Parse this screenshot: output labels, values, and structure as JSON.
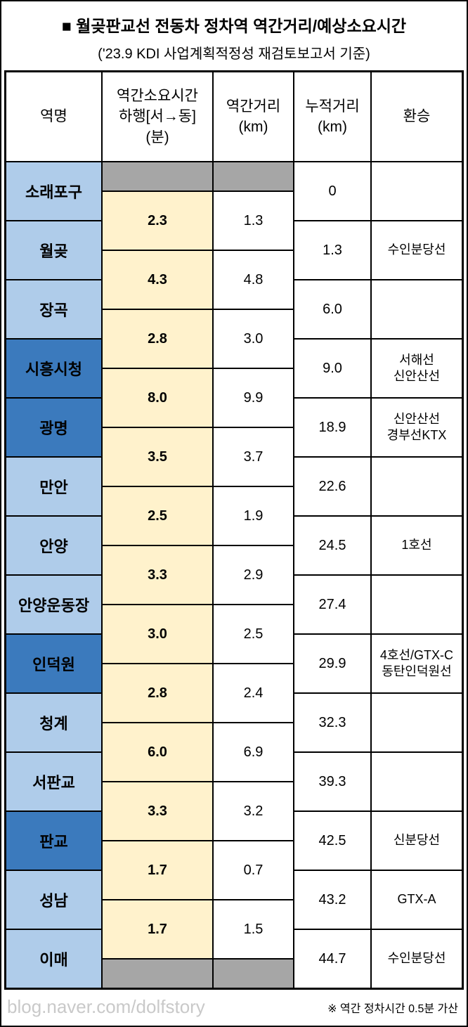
{
  "title": "■ 월곶판교선 전동차 정차역 역간거리/예상소요시간",
  "subtitle": "('23.9 KDI 사업계획적정성 재검토보고서 기준)",
  "colors": {
    "station_light": "#AFCCEA",
    "station_dark": "#3B7ABD",
    "segment_time_bg": "#FFF2CC",
    "gray_cell": "#A6A6A6"
  },
  "chart_data": {
    "type": "table",
    "title": "월곶판교선 전동차 정차역 역간거리/예상소요시간",
    "headers": {
      "station": "역명",
      "segment_time": "역간소요시간\n하행[서→동]\n(분)",
      "segment_distance": "역간거리\n(km)",
      "cumulative_distance": "누적거리\n(km)",
      "transfer": "환승"
    },
    "stations": [
      {
        "name": "소래포구",
        "shade": "light",
        "cumulative": "0",
        "transfer": ""
      },
      {
        "name": "월곶",
        "shade": "light",
        "cumulative": "1.3",
        "transfer": "수인분당선"
      },
      {
        "name": "장곡",
        "shade": "light",
        "cumulative": "6.0",
        "transfer": ""
      },
      {
        "name": "시흥시청",
        "shade": "dark",
        "cumulative": "9.0",
        "transfer": "서해선\n신안산선"
      },
      {
        "name": "광명",
        "shade": "dark",
        "cumulative": "18.9",
        "transfer": "신안산선\n경부선KTX"
      },
      {
        "name": "만안",
        "shade": "light",
        "cumulative": "22.6",
        "transfer": ""
      },
      {
        "name": "안양",
        "shade": "light",
        "cumulative": "24.5",
        "transfer": "1호선"
      },
      {
        "name": "안양운동장",
        "shade": "light",
        "cumulative": "27.4",
        "transfer": ""
      },
      {
        "name": "인덕원",
        "shade": "dark",
        "cumulative": "29.9",
        "transfer": "4호선/GTX-C\n동탄인덕원선"
      },
      {
        "name": "청계",
        "shade": "light",
        "cumulative": "32.3",
        "transfer": ""
      },
      {
        "name": "서판교",
        "shade": "light",
        "cumulative": "39.3",
        "transfer": ""
      },
      {
        "name": "판교",
        "shade": "dark",
        "cumulative": "42.5",
        "transfer": "신분당선"
      },
      {
        "name": "성남",
        "shade": "light",
        "cumulative": "43.2",
        "transfer": "GTX-A"
      },
      {
        "name": "이매",
        "shade": "light",
        "cumulative": "44.7",
        "transfer": "수인분당선"
      }
    ],
    "segments": [
      {
        "time": "2.3",
        "distance": "1.3"
      },
      {
        "time": "4.3",
        "distance": "4.8"
      },
      {
        "time": "2.8",
        "distance": "3.0"
      },
      {
        "time": "8.0",
        "distance": "9.9"
      },
      {
        "time": "3.5",
        "distance": "3.7"
      },
      {
        "time": "2.5",
        "distance": "1.9"
      },
      {
        "time": "3.3",
        "distance": "2.9"
      },
      {
        "time": "3.0",
        "distance": "2.5"
      },
      {
        "time": "2.8",
        "distance": "2.4"
      },
      {
        "time": "6.0",
        "distance": "6.9"
      },
      {
        "time": "3.3",
        "distance": "3.2"
      },
      {
        "time": "1.7",
        "distance": "0.7"
      },
      {
        "time": "1.7",
        "distance": "1.5"
      }
    ]
  },
  "footer": {
    "watermark": "blog.naver.com/dolfstory",
    "note": "※ 역간 정차시간 0.5분 가산"
  }
}
